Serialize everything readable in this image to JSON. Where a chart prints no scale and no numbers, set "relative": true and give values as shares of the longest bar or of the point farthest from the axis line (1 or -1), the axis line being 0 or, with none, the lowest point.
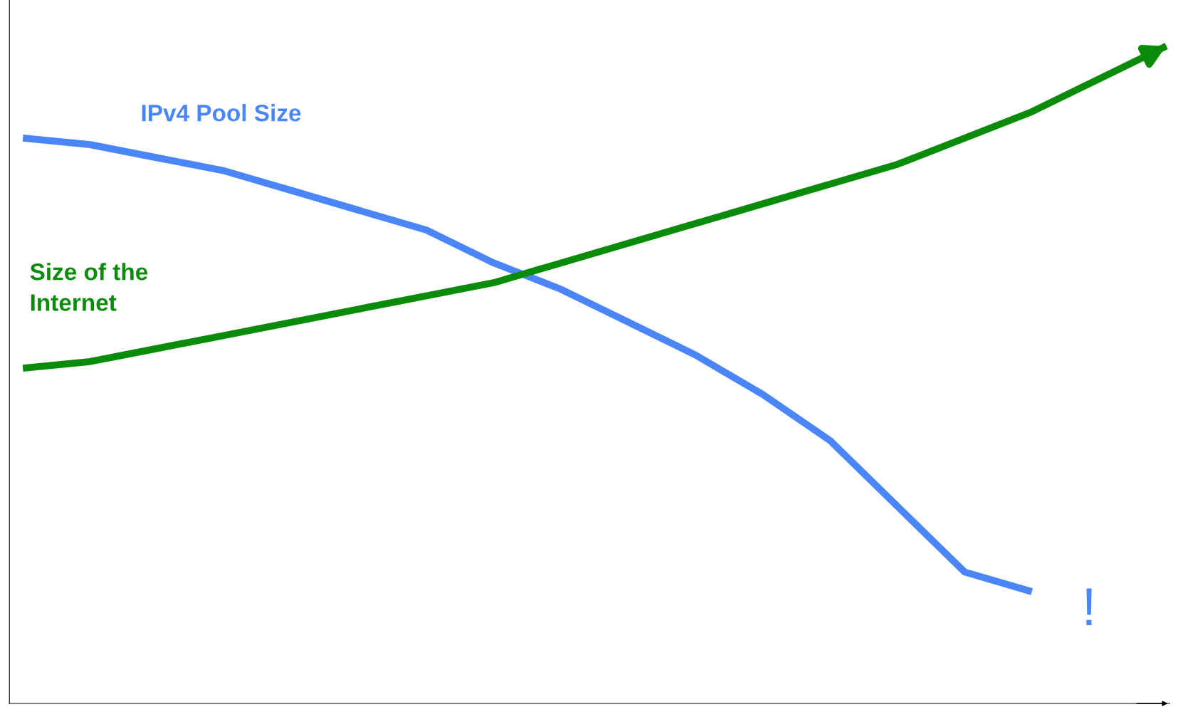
{
  "chart_data": {
    "type": "line",
    "relative": true,
    "categories": [
      null,
      null,
      null,
      null,
      null,
      null,
      null,
      null,
      null,
      null,
      null,
      null,
      null,
      null,
      null,
      null,
      null,
      null
    ],
    "series": [
      {
        "name": "IPv4 Pool Size",
        "color": "#4a86f7",
        "values": [
          0.86,
          0.85,
          0.83,
          0.81,
          0.78,
          0.75,
          0.72,
          0.67,
          0.63,
          0.58,
          0.53,
          0.47,
          0.4,
          0.3,
          0.2,
          0.17,
          null,
          null
        ]
      },
      {
        "name": "Size of the Internet",
        "color": "#0a8c0a",
        "values": [
          0.51,
          0.52,
          0.54,
          0.56,
          0.58,
          0.6,
          0.62,
          0.64,
          0.67,
          0.7,
          0.73,
          0.76,
          0.79,
          0.82,
          0.86,
          0.9,
          0.95,
          1.0
        ]
      }
    ],
    "annotations": [
      "!"
    ],
    "legend": false,
    "marker": "none",
    "line_style": "solid"
  }
}
